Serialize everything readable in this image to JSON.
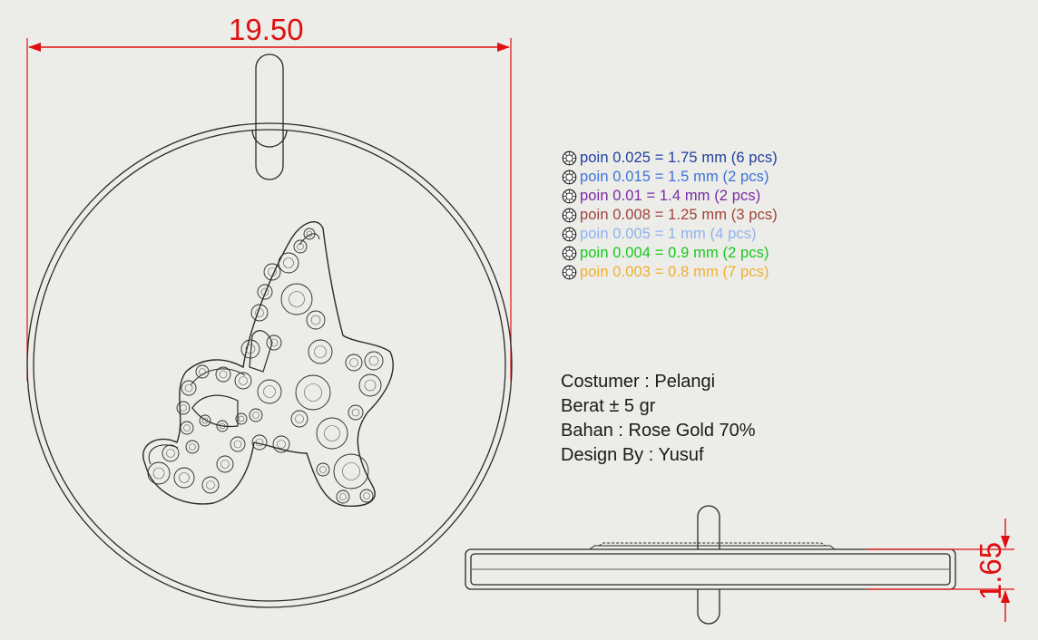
{
  "dimensions": {
    "width": "19.50",
    "thickness": "1.65"
  },
  "colors": {
    "dimension": "#e01010",
    "outline": "#2a2a2a",
    "background": "#ecece9"
  },
  "stone_icon": "round-gem-icon",
  "stones": [
    {
      "text": "poin 0.025 = 1.75 mm (6 pcs)",
      "color": "#1f3f9f"
    },
    {
      "text": "poin 0.015 = 1.5 mm (2 pcs)",
      "color": "#3f73d6"
    },
    {
      "text": "poin 0.01 = 1.4 mm (2 pcs)",
      "color": "#7a2aa8"
    },
    {
      "text": "poin 0.008 = 1.25 mm (3 pcs)",
      "color": "#a0443a"
    },
    {
      "text": "poin 0.005 = 1 mm (4 pcs)",
      "color": "#8fb2ee"
    },
    {
      "text": "poin 0.004 = 0.9 mm (2 pcs)",
      "color": "#16c91c"
    },
    {
      "text": "poin 0.003 = 0.8 mm (7 pcs)",
      "color": "#f0b030"
    }
  ],
  "specs": [
    "Costumer : Pelangi",
    "Berat ± 5 gr",
    "Bahan : Rose Gold 70%",
    "Design By : Yusuf"
  ]
}
